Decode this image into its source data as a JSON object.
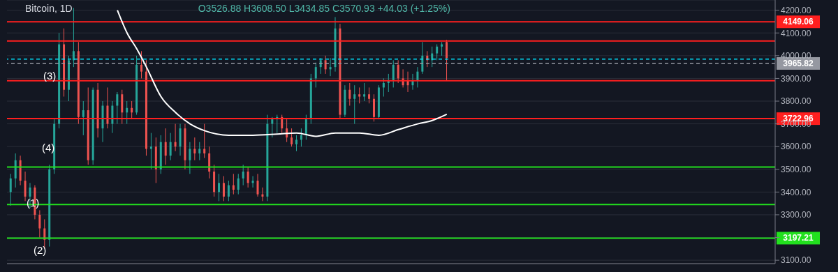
{
  "chart_data": {
    "type": "candlestick",
    "title": "Bitcoin, 1D",
    "subtitle": "O3526.88 H3608.50 L3434.85 C3570.93 +44.03 (+1.25%)",
    "categories": [
      null,
      null,
      null,
      null,
      null,
      null,
      null,
      null,
      null,
      null,
      null,
      null,
      null,
      null,
      null,
      null,
      null,
      null,
      null,
      null,
      null,
      null,
      null,
      null,
      null,
      null,
      null,
      null,
      null,
      null,
      null,
      null,
      null,
      null,
      null,
      null,
      null,
      null,
      null,
      null,
      null,
      null,
      null,
      null,
      null,
      null,
      null,
      null,
      null,
      null,
      null,
      null,
      null,
      null,
      null,
      null,
      null,
      null,
      null,
      null,
      null,
      null,
      null,
      null,
      null,
      null,
      null,
      null,
      null,
      null,
      null,
      null,
      null,
      null,
      null,
      null,
      null,
      null,
      null,
      null,
      null,
      null,
      null,
      null,
      null,
      null,
      null,
      null,
      null,
      null,
      null,
      null,
      null,
      null,
      null,
      null,
      null,
      null,
      null,
      null,
      null,
      null,
      null,
      null,
      null,
      null,
      null,
      null,
      null,
      null,
      null,
      null,
      null,
      null,
      null,
      null,
      null,
      null,
      null,
      null,
      null,
      null,
      null,
      null,
      null,
      null,
      null,
      null,
      null,
      null,
      null,
      null,
      null,
      null,
      null,
      null,
      null,
      null,
      null,
      null,
      null,
      null,
      null,
      null,
      null,
      null,
      null,
      null,
      null,
      null,
      null,
      null,
      null,
      null,
      null,
      null,
      null,
      null
    ],
    "ohlc": [
      [
        3400,
        3480,
        3340,
        3460
      ],
      [
        3460,
        3570,
        3420,
        3540
      ],
      [
        3540,
        3560,
        3430,
        3450
      ],
      [
        3450,
        3490,
        3360,
        3380
      ],
      [
        3380,
        3440,
        3330,
        3420
      ],
      [
        3420,
        3430,
        3280,
        3300
      ],
      [
        3300,
        3320,
        3200,
        3240
      ],
      [
        3240,
        3280,
        3150,
        3190
      ],
      [
        3190,
        3520,
        3160,
        3500
      ],
      [
        3500,
        3720,
        3480,
        3700
      ],
      [
        3700,
        4100,
        3680,
        4050
      ],
      [
        4050,
        4120,
        3820,
        3850
      ],
      [
        3850,
        4000,
        3800,
        3980
      ],
      [
        3980,
        4210,
        3950,
        4020
      ],
      [
        4020,
        4060,
        3700,
        3730
      ],
      [
        3730,
        3800,
        3650,
        3760
      ],
      [
        3760,
        3860,
        3520,
        3540
      ],
      [
        3540,
        3860,
        3520,
        3850
      ],
      [
        3850,
        3880,
        3640,
        3680
      ],
      [
        3680,
        3800,
        3620,
        3780
      ],
      [
        3780,
        3860,
        3680,
        3700
      ],
      [
        3700,
        3800,
        3660,
        3780
      ],
      [
        3780,
        3840,
        3700,
        3830
      ],
      [
        3830,
        3850,
        3700,
        3750
      ],
      [
        3750,
        3800,
        3700,
        3770
      ],
      [
        3770,
        3800,
        3720,
        3750
      ],
      [
        3750,
        4000,
        3740,
        3960
      ],
      [
        3960,
        4020,
        3900,
        3930
      ],
      [
        3930,
        3980,
        3560,
        3590
      ],
      [
        3590,
        3660,
        3500,
        3600
      ],
      [
        3600,
        3640,
        3440,
        3500
      ],
      [
        3500,
        3650,
        3480,
        3620
      ],
      [
        3620,
        3680,
        3520,
        3560
      ],
      [
        3560,
        3660,
        3540,
        3620
      ],
      [
        3620,
        3700,
        3580,
        3600
      ],
      [
        3600,
        3700,
        3560,
        3680
      ],
      [
        3680,
        3700,
        3500,
        3540
      ],
      [
        3540,
        3620,
        3480,
        3590
      ],
      [
        3590,
        3640,
        3540,
        3570
      ],
      [
        3570,
        3620,
        3540,
        3590
      ],
      [
        3590,
        3700,
        3550,
        3570
      ],
      [
        3570,
        3600,
        3460,
        3490
      ],
      [
        3490,
        3520,
        3380,
        3400
      ],
      [
        3400,
        3480,
        3360,
        3440
      ],
      [
        3440,
        3470,
        3360,
        3380
      ],
      [
        3380,
        3450,
        3360,
        3430
      ],
      [
        3430,
        3480,
        3390,
        3410
      ],
      [
        3410,
        3480,
        3390,
        3460
      ],
      [
        3460,
        3520,
        3430,
        3490
      ],
      [
        3490,
        3510,
        3420,
        3440
      ],
      [
        3440,
        3470,
        3420,
        3450
      ],
      [
        3450,
        3480,
        3380,
        3390
      ],
      [
        3390,
        3420,
        3360,
        3380
      ],
      [
        3380,
        3740,
        3360,
        3700
      ],
      [
        3700,
        3730,
        3640,
        3720
      ],
      [
        3720,
        3740,
        3660,
        3730
      ],
      [
        3730,
        3740,
        3660,
        3680
      ],
      [
        3680,
        3720,
        3620,
        3640
      ],
      [
        3640,
        3680,
        3600,
        3610
      ],
      [
        3610,
        3650,
        3580,
        3630
      ],
      [
        3630,
        3680,
        3600,
        3650
      ],
      [
        3650,
        3740,
        3630,
        3720
      ],
      [
        3720,
        3920,
        3700,
        3900
      ],
      [
        3900,
        3970,
        3860,
        3950
      ],
      [
        3950,
        3990,
        3920,
        3980
      ],
      [
        3980,
        4000,
        3920,
        3940
      ],
      [
        3940,
        3990,
        3910,
        3950
      ],
      [
        3950,
        4170,
        3930,
        4120
      ],
      [
        4120,
        4140,
        3720,
        3740
      ],
      [
        3740,
        3870,
        3730,
        3850
      ],
      [
        3850,
        3880,
        3780,
        3810
      ],
      [
        3810,
        3870,
        3700,
        3830
      ],
      [
        3830,
        3860,
        3790,
        3820
      ],
      [
        3820,
        3880,
        3800,
        3830
      ],
      [
        3830,
        3860,
        3790,
        3810
      ],
      [
        3810,
        3830,
        3710,
        3730
      ],
      [
        3730,
        3870,
        3720,
        3860
      ],
      [
        3860,
        3900,
        3820,
        3880
      ],
      [
        3880,
        3920,
        3840,
        3890
      ],
      [
        3890,
        3980,
        3860,
        3960
      ],
      [
        3960,
        3980,
        3880,
        3900
      ],
      [
        3900,
        3940,
        3860,
        3870
      ],
      [
        3890,
        3930,
        3840,
        3870
      ],
      [
        3870,
        3920,
        3850,
        3890
      ],
      [
        3890,
        3950,
        3860,
        3930
      ],
      [
        3930,
        4060,
        3920,
        4000
      ],
      [
        4000,
        4020,
        3950,
        3980
      ],
      [
        3980,
        4040,
        3950,
        4010
      ],
      [
        4010,
        4050,
        3980,
        4040
      ],
      [
        4040,
        4060,
        4000,
        4050
      ],
      [
        4060,
        4070,
        3890,
        3990
      ],
      null,
      null,
      null,
      null,
      null,
      null,
      null,
      null,
      null,
      null,
      null,
      null,
      null,
      null,
      null,
      null,
      null,
      null,
      null,
      null,
      null,
      null,
      null,
      null,
      null,
      null,
      null,
      null,
      null,
      null,
      null,
      null,
      null,
      null,
      null,
      null,
      null,
      null,
      null,
      null,
      null,
      null,
      null,
      null,
      null,
      null,
      null,
      null,
      null,
      null,
      null,
      null,
      null,
      null,
      null,
      null,
      null,
      null,
      null,
      null,
      null,
      null,
      null,
      null,
      null,
      null,
      null
    ],
    "colors": [
      "#26a69a",
      "#26a69a",
      "#ef5350",
      "#ef5350",
      "#26a69a",
      "#ef5350",
      "#ef5350",
      "#ef5350",
      "#26a69a",
      "#26a69a",
      "#26a69a",
      "#ef5350",
      "#26a69a",
      "#26a69a",
      "#ef5350",
      "#26a69a",
      "#ef5350",
      "#26a69a",
      "#ef5350",
      "#26a69a",
      "#ef5350",
      "#26a69a",
      "#26a69a",
      "#ef5350",
      "#26a69a",
      "#ef5350",
      "#26a69a",
      "#ef5350",
      "#ef5350",
      "#26a69a",
      "#ef5350",
      "#26a69a",
      "#ef5350",
      "#26a69a",
      "#ef5350",
      "#26a69a",
      "#ef5350",
      "#26a69a",
      "#ef5350",
      "#26a69a",
      "#ef5350",
      "#ef5350",
      "#ef5350",
      "#26a69a",
      "#ef5350",
      "#26a69a",
      "#ef5350",
      "#26a69a",
      "#26a69a",
      "#ef5350",
      "#26a69a",
      "#ef5350",
      "#ef5350",
      "#26a69a",
      "#26a69a",
      "#26a69a",
      "#ef5350",
      "#ef5350",
      "#ef5350",
      "#26a69a",
      "#26a69a",
      "#26a69a",
      "#26a69a",
      "#26a69a",
      "#26a69a",
      "#ef5350",
      "#26a69a",
      "#26a69a",
      "#ef5350",
      "#26a69a",
      "#ef5350",
      "#26a69a",
      "#ef5350",
      "#26a69a",
      "#ef5350",
      "#ef5350",
      "#26a69a",
      "#26a69a",
      "#26a69a",
      "#26a69a",
      "#ef5350",
      "#ef5350",
      "#ef5350",
      "#26a69a",
      "#26a69a",
      "#26a69a",
      "#ef5350",
      "#26a69a",
      "#26a69a",
      "#26a69a",
      "#ef5350",
      null,
      null,
      null,
      null,
      null,
      null,
      null,
      null,
      null,
      null,
      null,
      null,
      null,
      null,
      null,
      null,
      null,
      null,
      null,
      null,
      null,
      null,
      null,
      null,
      null,
      null,
      null,
      null,
      null,
      null,
      null,
      null,
      null,
      null,
      null,
      null,
      null,
      null,
      null,
      null,
      null,
      null,
      null,
      null,
      null,
      null,
      null,
      null,
      null,
      null,
      null,
      null,
      null,
      null,
      null,
      null,
      null,
      null,
      null,
      null,
      null,
      null,
      null,
      null,
      null,
      null,
      null
    ],
    "series": [
      {
        "type": "line",
        "color": "#ffffff",
        "values": [
          null,
          null,
          null,
          null,
          null,
          null,
          null,
          null,
          null,
          null,
          null,
          null,
          null,
          null,
          null,
          null,
          null,
          null,
          null,
          null,
          null,
          null,
          4200,
          null,
          4100,
          null,
          4030,
          null,
          3950,
          null,
          null,
          3820,
          null,
          null,
          3750,
          null,
          null,
          3700,
          null,
          null,
          3670,
          null,
          null,
          null,
          null,
          3650,
          null,
          null,
          null,
          null,
          3650,
          null,
          null,
          null,
          null,
          3655,
          null,
          null,
          null,
          3660,
          null,
          null,
          null,
          3645,
          null,
          null,
          null,
          3660,
          null,
          null,
          null,
          null,
          3660,
          null,
          null,
          null,
          3650,
          null,
          null,
          null,
          3675,
          null,
          null,
          null,
          3700,
          null,
          null,
          3715,
          null,
          null,
          3742,
          null,
          null,
          null,
          null,
          null,
          null,
          null,
          null,
          null,
          null,
          null,
          null,
          null,
          null,
          null,
          null,
          null,
          null,
          null,
          null,
          null,
          null,
          null,
          null,
          null,
          null,
          null,
          null,
          null,
          null,
          null,
          null,
          null,
          null,
          null,
          null,
          null,
          null,
          null,
          null,
          null,
          null,
          null,
          null,
          null,
          null,
          null,
          null,
          null,
          null,
          null,
          null,
          null,
          null,
          null,
          null,
          null,
          null,
          null,
          null,
          null,
          null,
          null,
          null,
          null,
          null,
          null
        ]
      }
    ],
    "ylim": [
      3085,
      4245
    ],
    "yticks": [
      {
        "value": 3100,
        "label": "3100.00"
      },
      {
        "value": 3200,
        "label": null
      },
      {
        "value": 3300,
        "label": "3300.00"
      },
      {
        "value": 3400,
        "label": "3400.00"
      },
      {
        "value": 3500,
        "label": "3500.00"
      },
      {
        "value": 3600,
        "label": "3600.00"
      },
      {
        "value": 3700,
        "label": "3700.00"
      },
      {
        "value": 3800,
        "label": "3800.00"
      },
      {
        "value": 3900,
        "label": "3900.00"
      },
      {
        "value": 4000,
        "label": "4000.00"
      },
      {
        "value": 4100,
        "label": "4100.00"
      },
      {
        "value": 4200,
        "label": "4200.00"
      }
    ],
    "tick_labels": "y",
    "grid": "y",
    "ref_lines": [
      {
        "axis": "y",
        "value": 4149.06,
        "label": "4149.06",
        "color": "#ff1f1f"
      },
      {
        "axis": "y",
        "value": 3722.96,
        "label": "3722.96",
        "color": "#ff1f1f"
      },
      {
        "axis": "y",
        "value": 3197.21,
        "label": "3197.21",
        "color": "#22e01e"
      },
      {
        "axis": "y",
        "value": 3965.82,
        "label": "3965.82",
        "color": "#9598a1",
        "line_style": "dashed"
      },
      {
        "axis": "y",
        "value": 3985,
        "color": "#00e5ff",
        "line_style": "dashed"
      },
      {
        "axis": "y",
        "value": 4065,
        "color": "#ff1f1f"
      },
      {
        "axis": "y",
        "value": 3890,
        "color": "#ff1f1f"
      },
      {
        "axis": "y",
        "value": 3510,
        "color": "#22e01e"
      },
      {
        "axis": "y",
        "value": 3345,
        "color": "#22e01e"
      }
    ],
    "annotations": [
      "(1)",
      "(2)",
      "(3)",
      "(4)"
    ]
  }
}
